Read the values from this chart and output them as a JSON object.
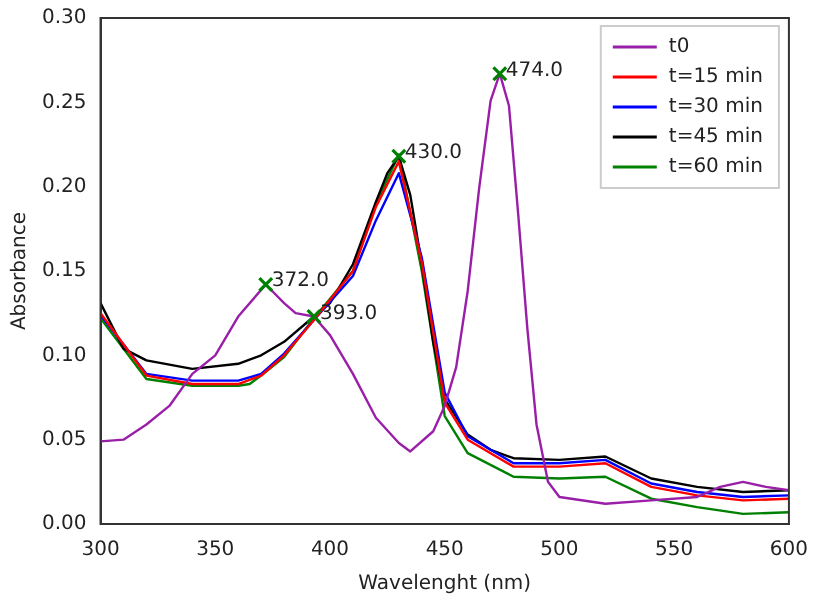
{
  "chart_data": {
    "type": "line",
    "xlabel": "Wavelenght (nm)",
    "ylabel": "Absorbance",
    "xlim": [
      300,
      600
    ],
    "xticks": [
      300,
      350,
      400,
      450,
      500,
      550,
      600
    ],
    "ylim": [
      0,
      0.3
    ],
    "yticks": [
      {
        "value": 0,
        "label": "0.00"
      },
      {
        "value": 0.05,
        "label": "0.05"
      },
      {
        "value": 0.1,
        "label": "0.10"
      },
      {
        "value": 0.15,
        "label": "0.15"
      },
      {
        "value": 0.2,
        "label": "0.20"
      },
      {
        "value": 0.25,
        "label": "0.25"
      },
      {
        "value": 0.3,
        "label": "0.30"
      }
    ],
    "grid": false,
    "legend": "top right",
    "marker": "none",
    "line_style": "solid",
    "series": [
      {
        "name": "t0",
        "color": "#9a1fa8",
        "type": "line",
        "x": [
          300,
          310,
          320,
          330,
          340,
          350,
          360,
          372,
          380,
          385,
          393,
          400,
          410,
          420,
          430,
          435,
          445,
          450,
          455,
          460,
          465,
          470,
          474,
          478,
          482,
          486,
          490,
          495,
          500,
          520,
          540,
          560,
          570,
          580,
          590,
          600
        ],
        "values": [
          0.049,
          0.05,
          0.059,
          0.07,
          0.089,
          0.1,
          0.123,
          0.142,
          0.131,
          0.125,
          0.123,
          0.112,
          0.089,
          0.063,
          0.048,
          0.043,
          0.055,
          0.07,
          0.093,
          0.138,
          0.199,
          0.251,
          0.267,
          0.248,
          0.184,
          0.116,
          0.059,
          0.025,
          0.016,
          0.012,
          0.014,
          0.016,
          0.022,
          0.025,
          0.022,
          0.02
        ]
      },
      {
        "name": "t=15 min",
        "color": "#ff0000",
        "type": "line",
        "x": [
          300,
          320,
          340,
          360,
          370,
          380,
          393,
          410,
          420,
          430,
          440,
          450,
          460,
          480,
          500,
          520,
          540,
          560,
          580,
          600
        ],
        "values": [
          0.125,
          0.088,
          0.083,
          0.083,
          0.088,
          0.1,
          0.121,
          0.15,
          0.188,
          0.215,
          0.155,
          0.072,
          0.05,
          0.034,
          0.034,
          0.036,
          0.022,
          0.017,
          0.014,
          0.015
        ]
      },
      {
        "name": "t=30 min",
        "color": "#0000ff",
        "type": "line",
        "x": [
          300,
          320,
          340,
          360,
          370,
          380,
          393,
          410,
          420,
          430,
          440,
          450,
          460,
          480,
          500,
          520,
          540,
          560,
          580,
          600
        ],
        "values": [
          0.124,
          0.089,
          0.085,
          0.085,
          0.089,
          0.101,
          0.121,
          0.147,
          0.18,
          0.208,
          0.158,
          0.078,
          0.052,
          0.036,
          0.036,
          0.038,
          0.024,
          0.019,
          0.016,
          0.017
        ]
      },
      {
        "name": "t=45 min",
        "color": "#000000",
        "type": "line",
        "x": [
          300,
          310,
          320,
          340,
          360,
          370,
          380,
          393,
          400,
          410,
          420,
          425,
          430,
          435,
          440,
          445,
          450,
          460,
          470,
          480,
          500,
          520,
          540,
          560,
          580,
          600
        ],
        "values": [
          0.131,
          0.104,
          0.097,
          0.092,
          0.095,
          0.1,
          0.108,
          0.123,
          0.131,
          0.154,
          0.191,
          0.208,
          0.218,
          0.195,
          0.154,
          0.108,
          0.074,
          0.053,
          0.044,
          0.039,
          0.038,
          0.04,
          0.027,
          0.022,
          0.019,
          0.02
        ]
      },
      {
        "name": "t=60 min",
        "color": "#008000",
        "type": "line",
        "x": [
          300,
          320,
          340,
          360,
          365,
          370,
          380,
          393,
          410,
          420,
          430,
          440,
          450,
          460,
          480,
          500,
          520,
          540,
          560,
          580,
          600
        ],
        "values": [
          0.122,
          0.086,
          0.082,
          0.082,
          0.083,
          0.088,
          0.099,
          0.122,
          0.15,
          0.19,
          0.219,
          0.15,
          0.064,
          0.042,
          0.028,
          0.027,
          0.028,
          0.015,
          0.01,
          0.006,
          0.007
        ]
      },
      {
        "color": "#008000",
        "type": "scatter",
        "marker": "cross",
        "x": [
          372,
          393,
          430,
          474
        ],
        "values": [
          0.142,
          0.123,
          0.218,
          0.267
        ]
      }
    ],
    "annotations": [
      {
        "text": "372.0",
        "x": 372,
        "y": 0.142
      },
      {
        "text": "393.0",
        "x": 393,
        "y": 0.123
      },
      {
        "text": "430.0",
        "x": 430,
        "y": 0.218
      },
      {
        "text": "474.0",
        "x": 474,
        "y": 0.267
      }
    ]
  }
}
